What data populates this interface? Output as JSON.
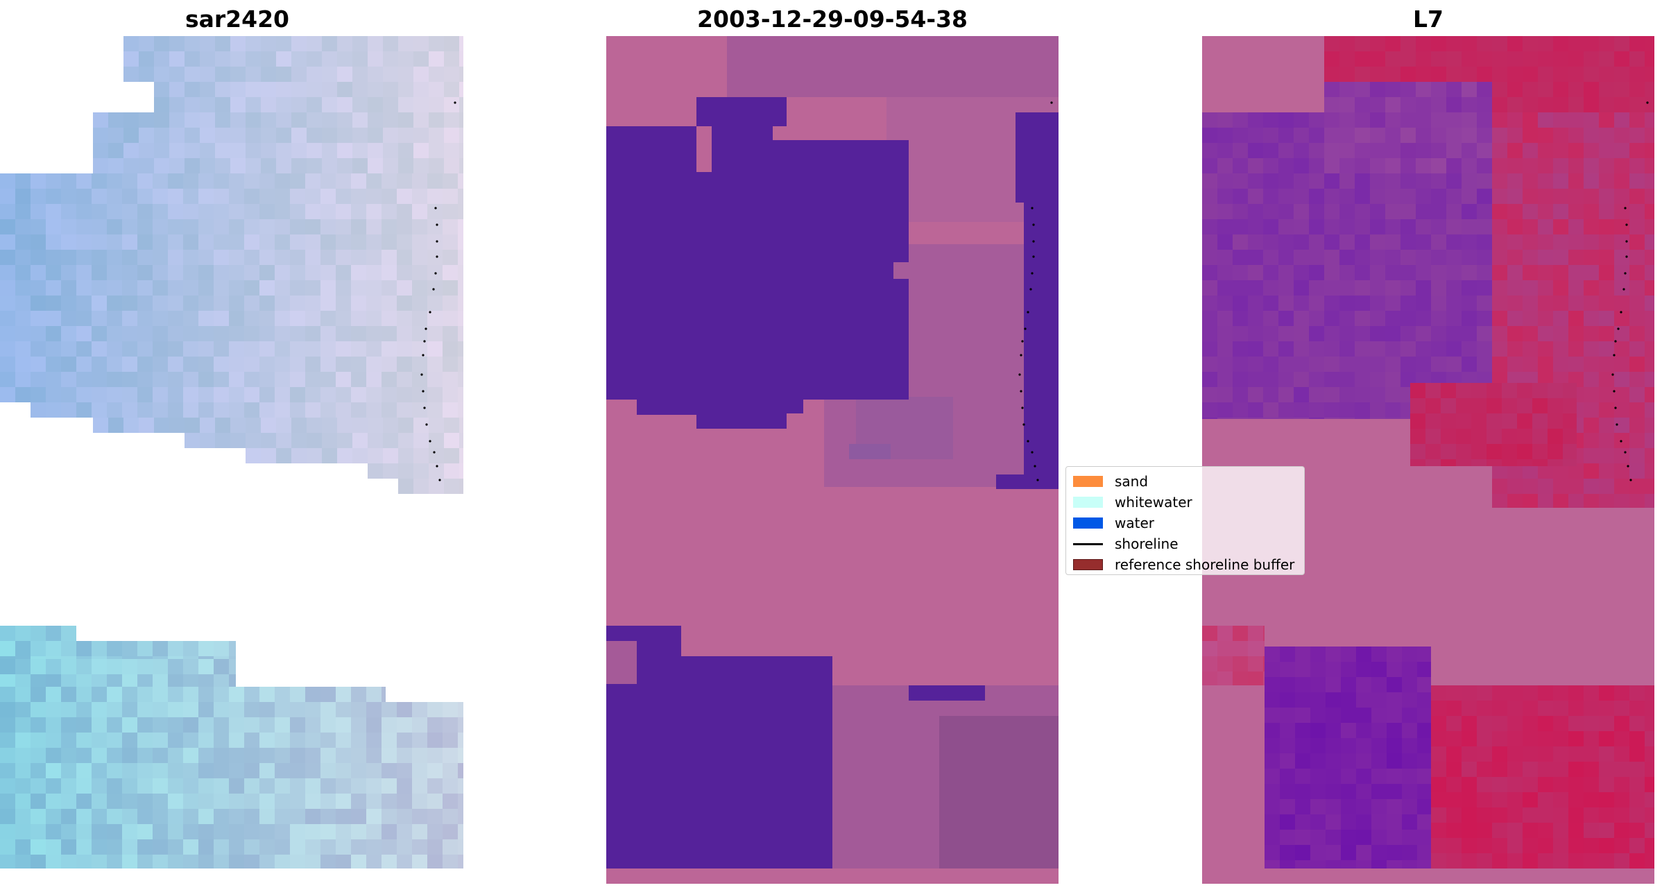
{
  "panels": [
    {
      "title": "sar2420"
    },
    {
      "title": "2003-12-29-09-54-38"
    },
    {
      "title": "L7"
    }
  ],
  "legend": {
    "entries": [
      {
        "label": "sand",
        "color": "#fd8c3c",
        "kind": "patch"
      },
      {
        "label": "whitewater",
        "color": "#c8fff8",
        "kind": "patch"
      },
      {
        "label": "water",
        "color": "#0058e6",
        "kind": "patch"
      },
      {
        "label": "shoreline",
        "color": "#000000",
        "kind": "line"
      },
      {
        "label": "reference shoreline buffer",
        "color": "#962d2d",
        "kind": "patch"
      }
    ]
  },
  "colors": {
    "nodata_pink": "#bc6697",
    "water_class_purple": "#55229a",
    "sar_blue": "#8fb7e2",
    "l7_magenta": "#c8205a",
    "l7_violet": "#7a2aa8"
  }
}
